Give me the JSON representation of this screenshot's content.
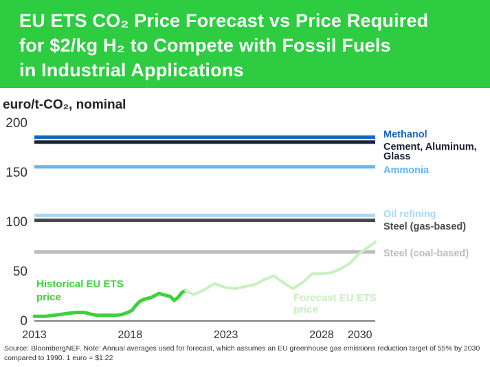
{
  "title_lines": [
    "EU ETS CO₂ Price Forecast vs Price Required",
    "for $2/kg H₂ to Compete with Fossil Fuels",
    "in Industrial Applications"
  ],
  "source_note": "Source: BloombergNEF. Note: Annual averages used for forecast, which assumes an EU greenhouse gas emissions reduction target of 55% by 2030 compared to 1990. 1 euro = $1.22",
  "colors": {
    "banner": "#2ecc40",
    "historical": "#3dd13d",
    "forecast": "#c8f0c0",
    "methanol": "#1565c0",
    "cement": "#1a2233",
    "ammonia": "#64b5f6",
    "oil_refining": "#a8d8f8",
    "steel_gas": "#4a4a4a",
    "steel_coal": "#bdbdbd"
  },
  "chart_data": {
    "type": "line",
    "ylabel": "euro/t-CO₂, nominal",
    "ylim": [
      0,
      200
    ],
    "yticks": [
      0,
      50,
      100,
      150,
      200
    ],
    "xlim": [
      2013,
      2030.8
    ],
    "xticks": [
      {
        "label": "2013",
        "value": 2013
      },
      {
        "label": "2018",
        "value": 2018
      },
      {
        "label": "2023",
        "value": 2023
      },
      {
        "label": "2028",
        "value": 2028
      },
      {
        "label": "2030",
        "value": 2030
      }
    ],
    "thresholds": [
      {
        "name": "Methanol",
        "value": 185,
        "color_key": "methanol",
        "label_lines": [
          "Methanol"
        ]
      },
      {
        "name": "Cement, Aluminum, Glass",
        "value": 180,
        "color_key": "cement",
        "label_lines": [
          "Cement, Aluminum,",
          "Glass"
        ]
      },
      {
        "name": "Ammonia",
        "value": 155,
        "color_key": "ammonia",
        "label_lines": [
          "Ammonia"
        ]
      },
      {
        "name": "Oil refining",
        "value": 106,
        "color_key": "oil_refining",
        "label_lines": [
          "Oil refining"
        ]
      },
      {
        "name": "Steel (gas-based)",
        "value": 101,
        "color_key": "steel_gas",
        "label_lines": [
          "Steel (gas-based)"
        ]
      },
      {
        "name": "Steel (coal-based)",
        "value": 69,
        "color_key": "steel_coal",
        "label_lines": [
          "Steel (coal-based)"
        ]
      }
    ],
    "series": [
      {
        "name": "Historical EU ETS price",
        "label_lines": [
          "Historical EU ETS",
          "price"
        ],
        "color_key": "historical",
        "x": [
          2013.0,
          2013.3,
          2013.6,
          2014.0,
          2014.4,
          2014.8,
          2015.2,
          2015.6,
          2016.0,
          2016.3,
          2016.7,
          2017.0,
          2017.3,
          2017.6,
          2017.9,
          2018.1,
          2018.3,
          2018.5,
          2018.7,
          2018.9,
          2019.1,
          2019.3,
          2019.5,
          2019.7,
          2019.9,
          2020.1,
          2020.3,
          2020.5,
          2020.7,
          2020.9
        ],
        "y": [
          4,
          4,
          4,
          5,
          6,
          7,
          8,
          8,
          6,
          5,
          5,
          5,
          5,
          6,
          8,
          10,
          15,
          19,
          21,
          22,
          23,
          25,
          27,
          26,
          25,
          24,
          20,
          23,
          28,
          30
        ]
      },
      {
        "name": "Forecast EU ETS price",
        "label_lines": [
          "Forecast EU ETS",
          "price"
        ],
        "color_key": "forecast",
        "x": [
          2020.9,
          2021.3,
          2021.8,
          2022.4,
          2023.0,
          2023.5,
          2024.0,
          2024.5,
          2025.0,
          2025.5,
          2026.0,
          2026.5,
          2027.0,
          2027.5,
          2028.0,
          2028.5,
          2029.0,
          2029.5,
          2030.0,
          2030.8
        ],
        "y": [
          30,
          26,
          30,
          37,
          33,
          32,
          34,
          36,
          41,
          45,
          38,
          32,
          38,
          47,
          47,
          48,
          52,
          58,
          68,
          79
        ]
      }
    ]
  }
}
